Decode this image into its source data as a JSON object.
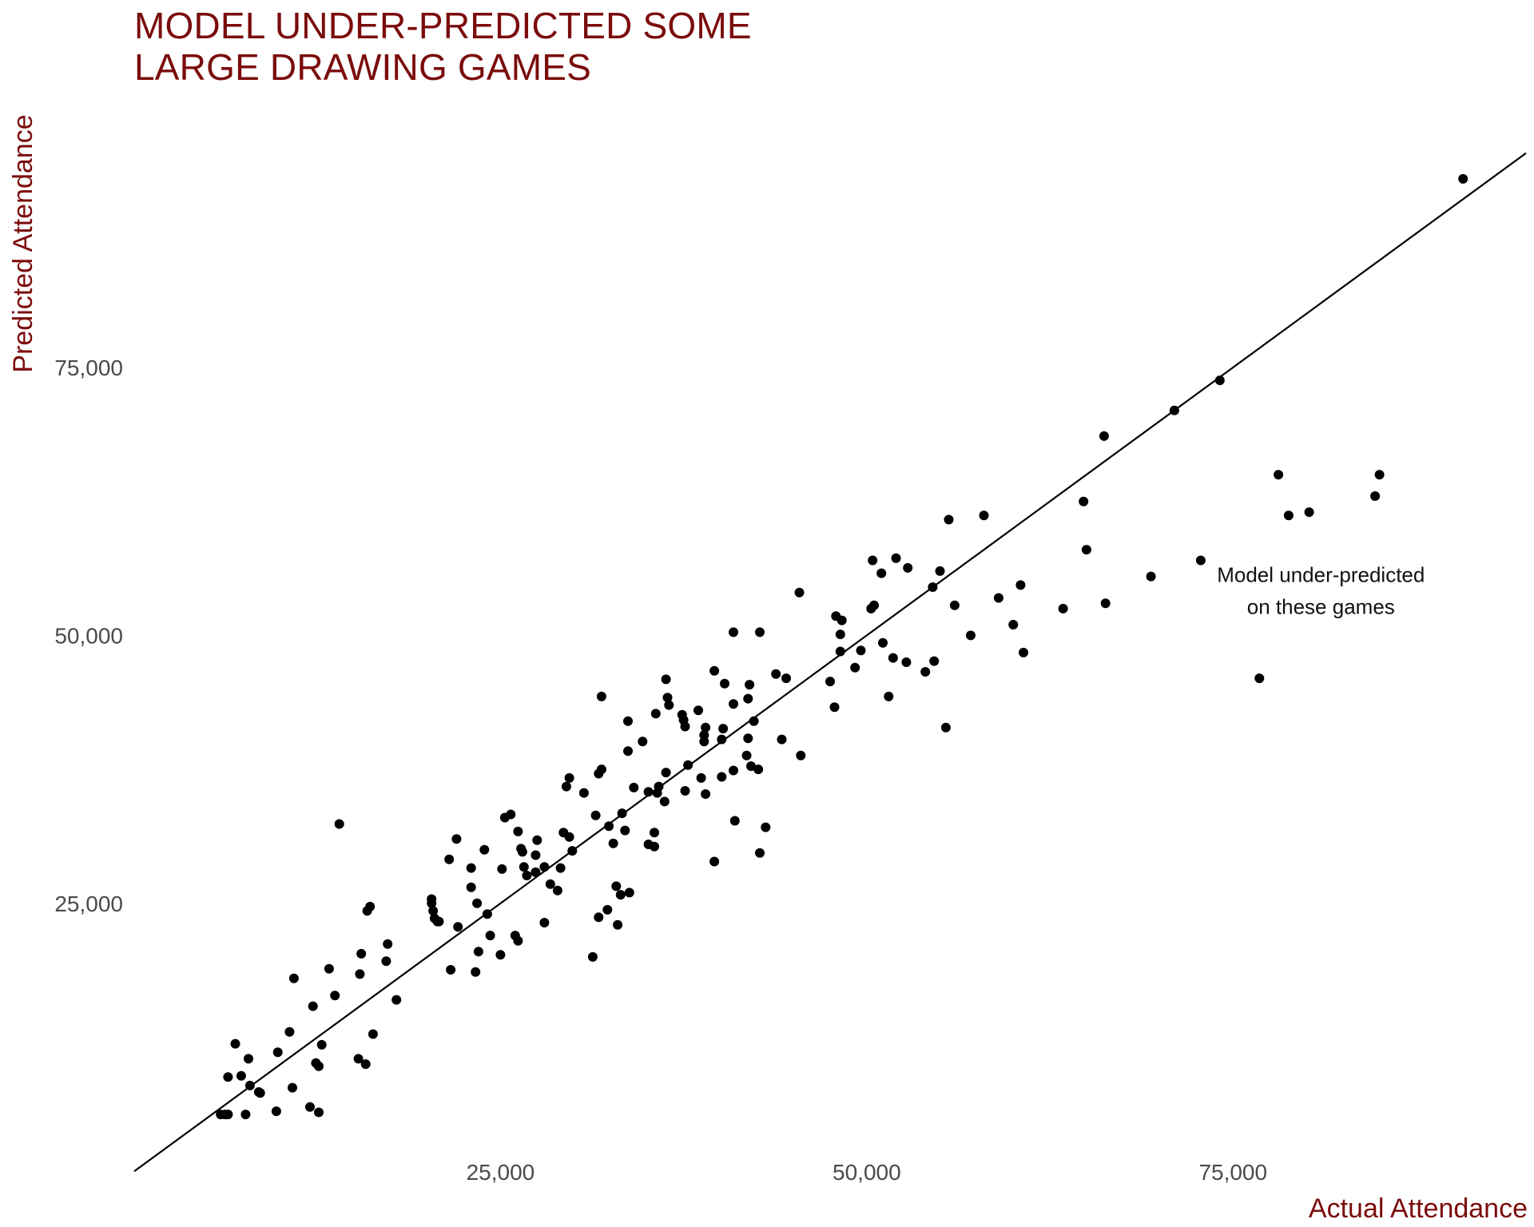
{
  "chart_data": {
    "type": "scatter",
    "title": [
      "MODEL UNDER-PREDICTED SOME",
      "LARGE DRAWING GAMES"
    ],
    "xlabel": "Actual Attendance",
    "ylabel": "Predicted Attendance",
    "xlim": [
      0,
      95000
    ],
    "ylim": [
      3000,
      99000
    ],
    "x_ticks": [
      25000,
      50000,
      75000
    ],
    "x_tick_labels": [
      "25,000",
      "50,000",
      "75,000"
    ],
    "y_ticks": [
      25000,
      50000,
      75000
    ],
    "y_tick_labels": [
      "25,000",
      "50,000",
      "75,000"
    ],
    "grid": false,
    "reference_line": {
      "from": [
        0,
        0
      ],
      "to": [
        95000,
        95000
      ],
      "color": "#000000"
    },
    "annotation": {
      "lines": [
        "Model under-predicted",
        "on these games"
      ],
      "x": 81000,
      "y": 55000
    },
    "points": [
      [
        90700,
        92600
      ],
      [
        74100,
        73800
      ],
      [
        71000,
        71000
      ],
      [
        66200,
        68600
      ],
      [
        64800,
        62500
      ],
      [
        65000,
        58000
      ],
      [
        66300,
        53000
      ],
      [
        63400,
        52500
      ],
      [
        69400,
        55500
      ],
      [
        72800,
        57000
      ],
      [
        76800,
        46000
      ],
      [
        78800,
        61200
      ],
      [
        80200,
        61500
      ],
      [
        78100,
        65000
      ],
      [
        84700,
        63000
      ],
      [
        85000,
        65000
      ],
      [
        58000,
        61200
      ],
      [
        55600,
        60800
      ],
      [
        55000,
        56000
      ],
      [
        54500,
        54500
      ],
      [
        56000,
        52800
      ],
      [
        57100,
        50000
      ],
      [
        59000,
        53500
      ],
      [
        60000,
        51000
      ],
      [
        60500,
        54700
      ],
      [
        60700,
        48400
      ],
      [
        54000,
        46600
      ],
      [
        54600,
        47600
      ],
      [
        55400,
        41400
      ],
      [
        52700,
        47500
      ],
      [
        51800,
        47900
      ],
      [
        50500,
        52800
      ],
      [
        50300,
        52500
      ],
      [
        50400,
        57000
      ],
      [
        51000,
        55800
      ],
      [
        52000,
        57200
      ],
      [
        52800,
        56300
      ],
      [
        51100,
        49300
      ],
      [
        51500,
        44300
      ],
      [
        49200,
        47000
      ],
      [
        49600,
        48600
      ],
      [
        48200,
        50100
      ],
      [
        48200,
        48500
      ],
      [
        47900,
        51800
      ],
      [
        48300,
        51400
      ],
      [
        47500,
        45700
      ],
      [
        47800,
        43300
      ],
      [
        45400,
        54000
      ],
      [
        45500,
        38800
      ],
      [
        44500,
        46000
      ],
      [
        43800,
        46400
      ],
      [
        44200,
        40300
      ],
      [
        42700,
        50300
      ],
      [
        42600,
        37500
      ],
      [
        42300,
        42000
      ],
      [
        42000,
        45400
      ],
      [
        41900,
        44100
      ],
      [
        41900,
        40400
      ],
      [
        42100,
        37800
      ],
      [
        41800,
        38800
      ],
      [
        42700,
        29700
      ],
      [
        43100,
        32100
      ],
      [
        40900,
        50300
      ],
      [
        40900,
        43600
      ],
      [
        40300,
        45500
      ],
      [
        40200,
        41300
      ],
      [
        40100,
        40300
      ],
      [
        40100,
        36800
      ],
      [
        40900,
        37400
      ],
      [
        41000,
        32700
      ],
      [
        39600,
        46700
      ],
      [
        39000,
        41400
      ],
      [
        38900,
        40100
      ],
      [
        38900,
        40700
      ],
      [
        39000,
        35200
      ],
      [
        39600,
        28900
      ],
      [
        38500,
        43000
      ],
      [
        38700,
        36700
      ],
      [
        37800,
        37900
      ],
      [
        37400,
        42600
      ],
      [
        37500,
        42100
      ],
      [
        37600,
        41500
      ],
      [
        37600,
        35500
      ],
      [
        36300,
        45900
      ],
      [
        36400,
        44200
      ],
      [
        36500,
        43500
      ],
      [
        36300,
        37200
      ],
      [
        36200,
        34500
      ],
      [
        35800,
        35900
      ],
      [
        35700,
        35300
      ],
      [
        35600,
        42700
      ],
      [
        35500,
        31600
      ],
      [
        35500,
        30300
      ],
      [
        35100,
        30500
      ],
      [
        35100,
        35400
      ],
      [
        34700,
        40100
      ],
      [
        34100,
        35800
      ],
      [
        33700,
        39200
      ],
      [
        33700,
        42000
      ],
      [
        33500,
        31800
      ],
      [
        33300,
        33400
      ],
      [
        33800,
        26000
      ],
      [
        33200,
        25800
      ],
      [
        33000,
        23000
      ],
      [
        32900,
        26600
      ],
      [
        32700,
        30600
      ],
      [
        32400,
        32200
      ],
      [
        32300,
        24400
      ],
      [
        31900,
        44300
      ],
      [
        31900,
        37500
      ],
      [
        31700,
        37100
      ],
      [
        31700,
        23700
      ],
      [
        31500,
        33200
      ],
      [
        31300,
        20000
      ],
      [
        30700,
        35300
      ],
      [
        29700,
        36700
      ],
      [
        29500,
        35900
      ],
      [
        29700,
        31200
      ],
      [
        29300,
        31600
      ],
      [
        29900,
        29900
      ],
      [
        29100,
        28300
      ],
      [
        28900,
        26200
      ],
      [
        28400,
        26800
      ],
      [
        28000,
        28400
      ],
      [
        28000,
        23200
      ],
      [
        27500,
        30900
      ],
      [
        27400,
        29500
      ],
      [
        27400,
        27900
      ],
      [
        26800,
        27600
      ],
      [
        26600,
        28400
      ],
      [
        26200,
        31700
      ],
      [
        26400,
        30100
      ],
      [
        26500,
        29800
      ],
      [
        25700,
        33300
      ],
      [
        25300,
        33000
      ],
      [
        25100,
        28200
      ],
      [
        26000,
        22000
      ],
      [
        26200,
        21500
      ],
      [
        25000,
        20200
      ],
      [
        24300,
        22000
      ],
      [
        24100,
        24000
      ],
      [
        23900,
        30000
      ],
      [
        23400,
        25000
      ],
      [
        23000,
        28300
      ],
      [
        23000,
        26500
      ],
      [
        23500,
        20500
      ],
      [
        23300,
        18600
      ],
      [
        22100,
        22800
      ],
      [
        22000,
        31000
      ],
      [
        21500,
        29100
      ],
      [
        21600,
        18800
      ],
      [
        20800,
        23300
      ],
      [
        20700,
        23300
      ],
      [
        20500,
        23600
      ],
      [
        20400,
        24300
      ],
      [
        20300,
        25000
      ],
      [
        20300,
        25400
      ],
      [
        16100,
        24700
      ],
      [
        15900,
        24300
      ],
      [
        14000,
        32400
      ],
      [
        17200,
        19600
      ],
      [
        17300,
        21200
      ],
      [
        17900,
        16000
      ],
      [
        15500,
        20300
      ],
      [
        15400,
        18400
      ],
      [
        13300,
        18900
      ],
      [
        13700,
        16400
      ],
      [
        16300,
        12800
      ],
      [
        15300,
        10500
      ],
      [
        15800,
        10000
      ],
      [
        12200,
        15400
      ],
      [
        12400,
        10100
      ],
      [
        12600,
        9800
      ],
      [
        12800,
        11800
      ],
      [
        10900,
        18000
      ],
      [
        10600,
        13000
      ],
      [
        9800,
        11100
      ],
      [
        10800,
        7800
      ],
      [
        12000,
        6000
      ],
      [
        12600,
        5500
      ],
      [
        9700,
        5600
      ],
      [
        8500,
        7400
      ],
      [
        8600,
        7300
      ],
      [
        7900,
        8000
      ],
      [
        7800,
        10500
      ],
      [
        6900,
        11900
      ],
      [
        7300,
        8900
      ],
      [
        7600,
        5300
      ],
      [
        6400,
        8800
      ],
      [
        5900,
        5300
      ],
      [
        6200,
        5300
      ],
      [
        6400,
        5300
      ]
    ]
  }
}
